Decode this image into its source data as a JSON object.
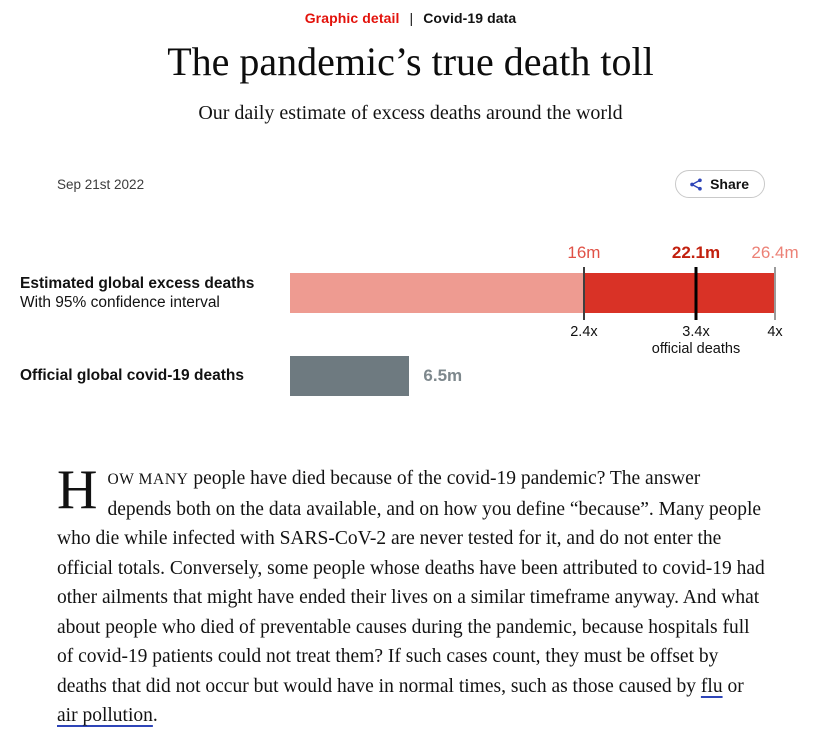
{
  "kicker": {
    "section": "Graphic detail",
    "separator": "|",
    "topic": "Covid-19 data",
    "section_color": "#E3120B"
  },
  "header": {
    "title": "The pandemic’s true death toll",
    "subtitle": "Our daily estimate of excess deaths around the world"
  },
  "meta": {
    "date": "Sep 21st 2022",
    "share_label": "Share"
  },
  "chart_data": {
    "type": "bar",
    "orientation": "horizontal",
    "xlim": [
      0,
      26.4
    ],
    "unit_suffix": "m",
    "rows": [
      {
        "label": "Estimated global excess deaths",
        "sublabel": "With 95% confidence interval",
        "ci_low": 16,
        "estimate": 22.1,
        "ci_high": 26.4,
        "value_labels": {
          "low": "16m",
          "mid": "22.1m",
          "high": "26.4m"
        },
        "multipliers": {
          "low": "2.4x",
          "mid": "3.4x",
          "high": "4x"
        },
        "multiplier_caption": "official deaths"
      },
      {
        "label": "Official global covid-19 deaths",
        "value": 6.5,
        "value_label": "6.5m"
      }
    ],
    "colors": {
      "ci_light": "#ee9b91",
      "ci_dark": "#d93226",
      "official_bar": "#6e7a80",
      "official_value_text": "#7e888d",
      "label_low": "#e05146",
      "label_mid": "#c2200e",
      "label_high": "#ec8176",
      "tick_low": "#3f3f3f",
      "tick_mid": "#000000",
      "tick_high": "#9a9a9a"
    }
  },
  "article": {
    "dropcap": "H",
    "smallcaps": "ow many",
    "body_1": " people have died because of the covid-19 pandemic? The answer depends both on the data available, and on how you define “because”. Many people who die while infected with SARS-CoV-2 are never tested for it, and do not enter the official totals. Conversely, some people whose deaths have been attributed to covid-19 had other ailments that might have ended their lives on a similar timeframe anyway. And what about people who died of preventable causes during the pandemic, because hospitals full of covid-19 patients could not treat them? If such cases count, they must be offset by deaths that did not occur but would have in normal times, such as those caused by ",
    "link_flu": "flu",
    "body_2": " or ",
    "link_air": "air pollution",
    "body_3": "."
  },
  "icons": {
    "share": "share-nodes-icon"
  },
  "accent_colors": {
    "brand_red": "#E3120B",
    "link_blue": "#2e45b8"
  }
}
